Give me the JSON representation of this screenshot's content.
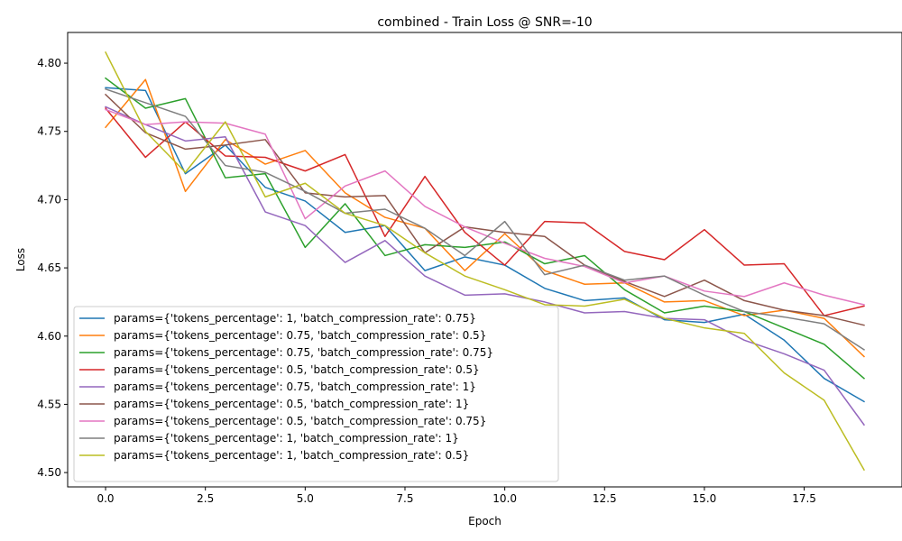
{
  "chart_data": {
    "type": "line",
    "title": "combined - Train Loss @ SNR=-10",
    "xlabel": "Epoch",
    "ylabel": "Loss",
    "xlim": [
      -0.95,
      19.95
    ],
    "ylim": [
      4.4895,
      4.8225
    ],
    "xticks": [
      0.0,
      2.5,
      5.0,
      7.5,
      10.0,
      12.5,
      15.0,
      17.5
    ],
    "xtick_labels": [
      "0.0",
      "2.5",
      "5.0",
      "7.5",
      "10.0",
      "12.5",
      "15.0",
      "17.5"
    ],
    "yticks": [
      4.5,
      4.55,
      4.6,
      4.65,
      4.7,
      4.75,
      4.8
    ],
    "ytick_labels": [
      "4.50",
      "4.55",
      "4.60",
      "4.65",
      "4.70",
      "4.75",
      "4.80"
    ],
    "grid": false,
    "legend_position": "lower-left",
    "x": [
      0,
      1,
      2,
      3,
      4,
      5,
      6,
      7,
      8,
      9,
      10,
      11,
      12,
      13,
      14,
      15,
      16,
      17,
      18,
      19
    ],
    "series": [
      {
        "name": "params={'tokens_percentage': 1, 'batch_compression_rate': 0.75}",
        "color": "#1f77b4",
        "values": [
          4.782,
          4.78,
          4.719,
          4.74,
          4.709,
          4.699,
          4.676,
          4.681,
          4.648,
          4.658,
          4.652,
          4.635,
          4.626,
          4.628,
          4.612,
          4.61,
          4.616,
          4.597,
          4.569,
          4.552
        ]
      },
      {
        "name": "params={'tokens_percentage': 0.75, 'batch_compression_rate': 0.5}",
        "color": "#ff7f0e",
        "values": [
          4.753,
          4.788,
          4.706,
          4.744,
          4.726,
          4.736,
          4.705,
          4.687,
          4.679,
          4.648,
          4.675,
          4.648,
          4.638,
          4.639,
          4.625,
          4.626,
          4.615,
          4.619,
          4.613,
          4.585
        ]
      },
      {
        "name": "params={'tokens_percentage': 0.75, 'batch_compression_rate': 0.75}",
        "color": "#2ca02c",
        "values": [
          4.789,
          4.767,
          4.774,
          4.716,
          4.719,
          4.665,
          4.697,
          4.659,
          4.667,
          4.665,
          4.669,
          4.653,
          4.659,
          4.634,
          4.617,
          4.622,
          4.618,
          4.606,
          4.594,
          4.569
        ]
      },
      {
        "name": "params={'tokens_percentage': 0.5, 'batch_compression_rate': 0.5}",
        "color": "#d62728",
        "values": [
          4.767,
          4.731,
          4.757,
          4.732,
          4.731,
          4.721,
          4.733,
          4.673,
          4.717,
          4.676,
          4.652,
          4.684,
          4.683,
          4.662,
          4.656,
          4.678,
          4.652,
          4.653,
          4.615,
          4.622
        ]
      },
      {
        "name": "params={'tokens_percentage': 0.75, 'batch_compression_rate': 1}",
        "color": "#9467bd",
        "values": [
          4.768,
          4.755,
          4.743,
          4.746,
          4.691,
          4.681,
          4.654,
          4.67,
          4.644,
          4.63,
          4.631,
          4.625,
          4.617,
          4.618,
          4.613,
          4.612,
          4.597,
          4.587,
          4.575,
          4.535
        ]
      },
      {
        "name": "params={'tokens_percentage': 0.5, 'batch_compression_rate': 1}",
        "color": "#8c564b",
        "values": [
          4.777,
          4.749,
          4.737,
          4.74,
          4.744,
          4.705,
          4.702,
          4.703,
          4.661,
          4.68,
          4.676,
          4.673,
          4.652,
          4.64,
          4.629,
          4.641,
          4.626,
          4.619,
          4.615,
          4.608
        ]
      },
      {
        "name": "params={'tokens_percentage': 0.5, 'batch_compression_rate': 0.75}",
        "color": "#e377c2",
        "values": [
          4.766,
          4.755,
          4.757,
          4.756,
          4.748,
          4.686,
          4.71,
          4.721,
          4.695,
          4.68,
          4.668,
          4.657,
          4.651,
          4.639,
          4.644,
          4.633,
          4.629,
          4.639,
          4.63,
          4.623
        ]
      },
      {
        "name": "params={'tokens_percentage': 1, 'batch_compression_rate': 1}",
        "color": "#7f7f7f",
        "values": [
          4.781,
          4.771,
          4.761,
          4.725,
          4.72,
          4.706,
          4.69,
          4.693,
          4.679,
          4.659,
          4.684,
          4.645,
          4.652,
          4.641,
          4.644,
          4.63,
          4.618,
          4.614,
          4.609,
          4.59
        ]
      },
      {
        "name": "params={'tokens_percentage': 1, 'batch_compression_rate': 0.5}",
        "color": "#bcbd22",
        "values": [
          4.808,
          4.75,
          4.72,
          4.757,
          4.702,
          4.712,
          4.69,
          4.681,
          4.661,
          4.644,
          4.634,
          4.623,
          4.622,
          4.627,
          4.613,
          4.606,
          4.602,
          4.573,
          4.553,
          4.502
        ]
      }
    ]
  }
}
